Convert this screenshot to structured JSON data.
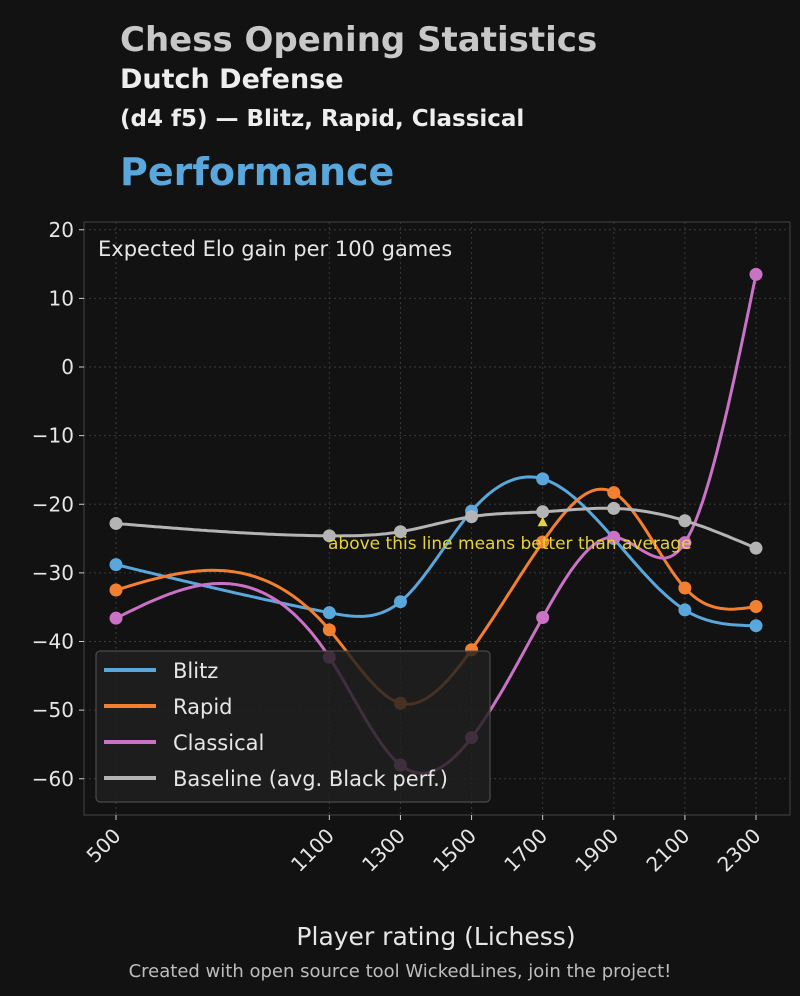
{
  "header": {
    "title": "Chess Opening Statistics",
    "opening": "Dutch Defense",
    "moves": "(d4 f5) — Blitz, Rapid, Classical",
    "section": "Performance"
  },
  "footer": "Created with open source tool WickedLines, join the project!",
  "chart_data": {
    "type": "line",
    "title": "Expected Elo gain per 100 games",
    "xlabel": "Player rating (Lichess)",
    "ylabel": "",
    "x": [
      500,
      1100,
      1300,
      1500,
      1700,
      1900,
      2100,
      2300
    ],
    "xticks": [
      "500",
      "1100",
      "1300",
      "1500",
      "1700",
      "1900",
      "2100",
      "2300"
    ],
    "yticks": [
      "20",
      "10",
      "0",
      "−10",
      "−20",
      "−30",
      "−40",
      "−50",
      "−60"
    ],
    "ylim": [
      -65,
      21
    ],
    "grid": true,
    "legend_position": "bottom-left",
    "annotation": "above this line means better than average",
    "series": [
      {
        "name": "Blitz",
        "color": "#5aa7dc",
        "values": [
          -28.8,
          -35.8,
          -34.2,
          -21.0,
          -16.3,
          -25.0,
          -35.4,
          -37.7
        ]
      },
      {
        "name": "Rapid",
        "color": "#f28030",
        "values": [
          -32.5,
          -38.3,
          -49.0,
          -41.2,
          -25.5,
          -18.3,
          -32.2,
          -34.9
        ]
      },
      {
        "name": "Classical",
        "color": "#c972c6",
        "values": [
          -36.6,
          -42.3,
          -58.0,
          -54.0,
          -36.5,
          -24.8,
          -25.6,
          13.5
        ]
      },
      {
        "name": "Baseline (avg. Black perf.)",
        "color": "#b4b4b4",
        "values": [
          -22.8,
          -24.6,
          -24.0,
          -21.8,
          -21.1,
          -20.6,
          -22.4,
          -26.4
        ]
      }
    ]
  }
}
